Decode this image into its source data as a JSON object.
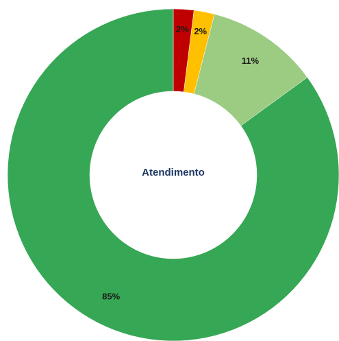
{
  "chart_data": {
    "type": "donut",
    "center_label": "Atendimento",
    "values": [
      2,
      2,
      11,
      85
    ],
    "value_labels": [
      "2%",
      "2%",
      "11%",
      "85%"
    ],
    "colors": [
      "#c00000",
      "#ffc000",
      "#9ccb82",
      "#36a755"
    ]
  }
}
